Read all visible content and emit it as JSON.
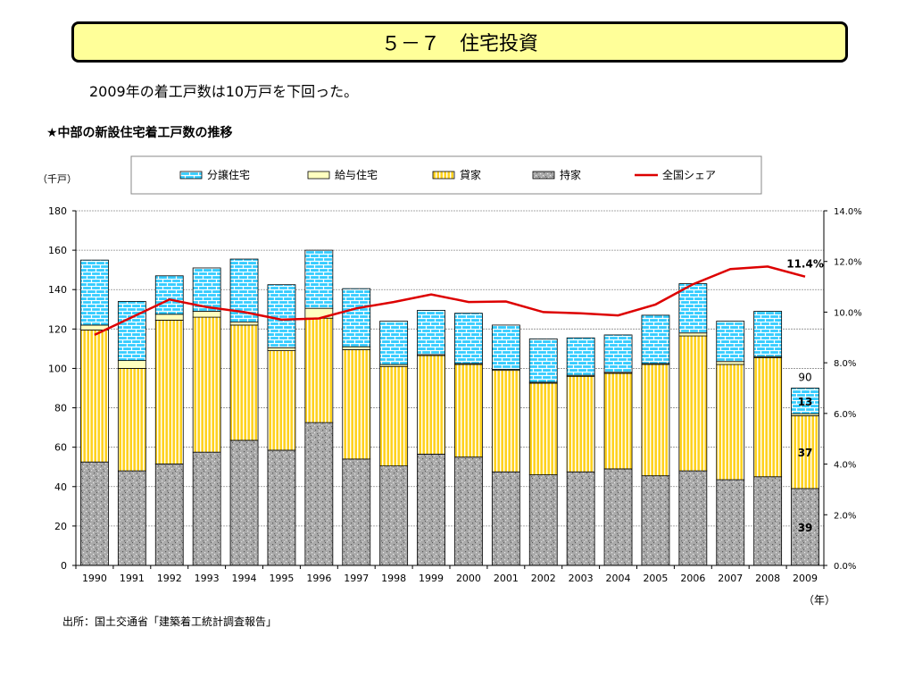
{
  "header": {
    "title": "５－７　住宅投資",
    "subtitle": "2009年の着工戸数は10万戸を下回った。"
  },
  "chart_heading": "★中部の新設住宅着工戸数の推移",
  "source": "出所：国土交通省「建築着工統計調査報告」",
  "chart_data": {
    "type": "bar",
    "stacked": true,
    "title": "★中部の新設住宅着工戸数の推移",
    "ylabel": "（千戸）",
    "xlabel": "（年）",
    "ylim": [
      0,
      180
    ],
    "yticks": [
      "0",
      "20",
      "40",
      "60",
      "80",
      "100",
      "120",
      "140",
      "160",
      "180"
    ],
    "y2lim": [
      0,
      14
    ],
    "y2ticks": [
      "0.0%",
      "2.0%",
      "4.0%",
      "6.0%",
      "8.0%",
      "10.0%",
      "12.0%",
      "14.0%"
    ],
    "legend_position": "top",
    "grid": true,
    "categories": [
      "1990",
      "1991",
      "1992",
      "1993",
      "1994",
      "1995",
      "1996",
      "1997",
      "1998",
      "1999",
      "2000",
      "2001",
      "2002",
      "2003",
      "2004",
      "2005",
      "2006",
      "2007",
      "2008",
      "2009"
    ],
    "series": [
      {
        "name": "持家",
        "type": "bar",
        "color": "#a8a8a8",
        "pattern": "stone",
        "values": [
          52.5,
          48,
          51.5,
          57.5,
          63.5,
          58.5,
          72.5,
          54,
          50.5,
          56.5,
          55,
          47.5,
          46,
          47.5,
          49,
          45.5,
          48,
          43.5,
          45,
          39
        ]
      },
      {
        "name": "貸家",
        "type": "bar",
        "color": "#ffcc00",
        "pattern": "vertical-stripes",
        "values": [
          67,
          52,
          73,
          68.5,
          58.5,
          50.5,
          53,
          55.5,
          50.5,
          50,
          47,
          51.5,
          46.5,
          48.5,
          48.5,
          56.5,
          68.5,
          58.5,
          60.5,
          37
        ]
      },
      {
        "name": "給与住宅",
        "type": "bar",
        "color": "#ffffc0",
        "pattern": "none",
        "values": [
          2.5,
          4,
          3,
          3,
          1.5,
          1.5,
          5,
          1.5,
          1,
          0.5,
          0.5,
          0.5,
          0.5,
          0.5,
          0.5,
          0.5,
          1.5,
          1.5,
          0.5,
          1
        ]
      },
      {
        "name": "分譲住宅",
        "type": "bar",
        "color": "#33ccff",
        "pattern": "brick",
        "values": [
          33,
          30,
          19.5,
          22,
          32,
          32,
          29.5,
          29.5,
          22,
          22.5,
          25.5,
          22.5,
          22,
          19,
          19,
          24.5,
          25,
          20.5,
          23,
          13
        ]
      },
      {
        "name": "全国シェア",
        "type": "line",
        "axis": "secondary",
        "color": "#dd0000",
        "values": [
          9.1,
          9.8,
          10.5,
          10.2,
          10.0,
          9.7,
          9.75,
          10.15,
          10.4,
          10.7,
          10.4,
          10.42,
          10.0,
          9.95,
          9.87,
          10.3,
          11.1,
          11.7,
          11.8,
          11.4
        ]
      }
    ],
    "annotations": [
      {
        "text": "90",
        "x": "2009",
        "y": 90,
        "kind": "total"
      },
      {
        "text": "13",
        "x": "2009",
        "series": "分譲住宅"
      },
      {
        "text": "37",
        "x": "2009",
        "series": "貸家"
      },
      {
        "text": "39",
        "x": "2009",
        "series": "持家"
      },
      {
        "text": "11.4%",
        "x": "2009",
        "series": "全国シェア"
      }
    ]
  }
}
